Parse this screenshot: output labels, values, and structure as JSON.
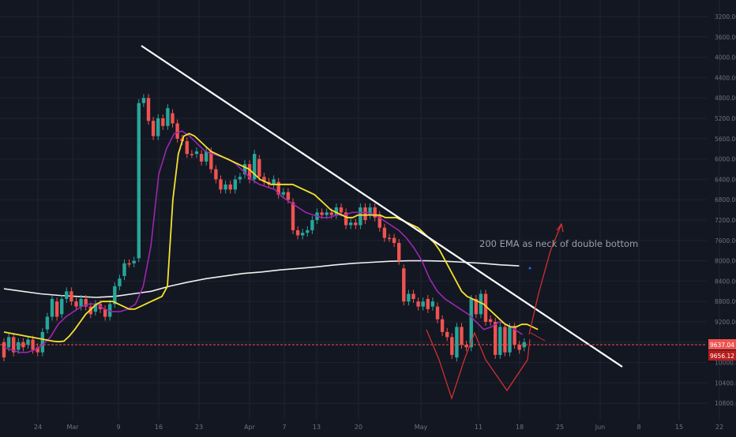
{
  "colors": {
    "background": "#131722",
    "grid": "#1f2430",
    "axis_text": "#6b7280",
    "up_candle": "#26a69a",
    "down_candle": "#ef5350",
    "ema_200": "#f0f0f0",
    "ema_yellow": "#f5e22c",
    "ema_purple": "#9c27b0",
    "trendline": "#ffffff",
    "price_line": "#ef5350",
    "annotation": "#e03030",
    "annotation_text": "#9aa0a8",
    "label_red": "#ef5350",
    "label_dark_red": "#b71c1c"
  },
  "chart_data": {
    "type": "candlestick",
    "title": "",
    "xlabel": "",
    "ylabel": "",
    "inverted_price_scale": true,
    "grid": true,
    "ylim": [
      11100,
      3100
    ],
    "y_ticks": [
      3200,
      3600,
      4000,
      4400,
      4800,
      5200,
      5600,
      6000,
      6400,
      6800,
      7200,
      7600,
      8000,
      8400,
      8800,
      9200,
      9600,
      10000,
      10400,
      10800
    ],
    "x_ticks": [
      "24",
      "Mar",
      "9",
      "16",
      "23",
      "Apr",
      "7",
      "13",
      "20",
      "May",
      "11",
      "18",
      "25",
      "Jun",
      "8",
      "15",
      "22"
    ],
    "price_labels": [
      "9637.04",
      "9656.12"
    ],
    "annotation_text": "200 EMA as neck of double bottom",
    "candles": [
      [
        9600,
        9900
      ],
      [
        9700,
        9500
      ],
      [
        9500,
        9800
      ],
      [
        9750,
        9600
      ],
      [
        9600,
        9700
      ],
      [
        9650,
        9550
      ],
      [
        9550,
        9750
      ],
      [
        9700,
        9800
      ],
      [
        9800,
        9400
      ],
      [
        9350,
        9100
      ],
      [
        9100,
        8750
      ],
      [
        8800,
        9100
      ],
      [
        9050,
        8750
      ],
      [
        8750,
        8600
      ],
      [
        8600,
        8800
      ],
      [
        8800,
        8900
      ],
      [
        8900,
        8750
      ],
      [
        8750,
        8900
      ],
      [
        8900,
        9050
      ],
      [
        9000,
        8850
      ],
      [
        8850,
        8950
      ],
      [
        8950,
        9100
      ],
      [
        9100,
        8850
      ],
      [
        8850,
        8500
      ],
      [
        8500,
        8350
      ],
      [
        8300,
        8050
      ],
      [
        8050,
        8050
      ],
      [
        8050,
        8000
      ],
      [
        7950,
        4900
      ],
      [
        4900,
        4800
      ],
      [
        4800,
        5250
      ],
      [
        5250,
        5550
      ],
      [
        5550,
        5200
      ],
      [
        5200,
        5350
      ],
      [
        5350,
        5000
      ],
      [
        5100,
        5300
      ],
      [
        5300,
        5600
      ],
      [
        5600,
        5650
      ],
      [
        5650,
        5900
      ],
      [
        5900,
        5900
      ],
      [
        5900,
        5850
      ],
      [
        5900,
        6050
      ],
      [
        6050,
        5850
      ],
      [
        5850,
        6200
      ],
      [
        6200,
        6400
      ],
      [
        6400,
        6600
      ],
      [
        6600,
        6500
      ],
      [
        6500,
        6600
      ],
      [
        6600,
        6400
      ],
      [
        6400,
        6350
      ],
      [
        6300,
        6100
      ],
      [
        6100,
        6400
      ],
      [
        6400,
        5900
      ],
      [
        6000,
        6350
      ],
      [
        6350,
        6450
      ],
      [
        6450,
        6500
      ],
      [
        6500,
        6400
      ],
      [
        6450,
        6700
      ],
      [
        6700,
        6650
      ],
      [
        6650,
        6800
      ],
      [
        6850,
        7400
      ],
      [
        7400,
        7500
      ],
      [
        7500,
        7450
      ],
      [
        7450,
        7400
      ],
      [
        7400,
        7200
      ],
      [
        7200,
        7050
      ],
      [
        7050,
        7100
      ],
      [
        7100,
        7050
      ],
      [
        7050,
        7100
      ],
      [
        7100,
        6950
      ],
      [
        6950,
        7050
      ],
      [
        7050,
        7300
      ],
      [
        7300,
        7250
      ],
      [
        7250,
        7300
      ],
      [
        7300,
        6950
      ],
      [
        6950,
        7200
      ],
      [
        7100,
        6950
      ],
      [
        6950,
        7150
      ],
      [
        7100,
        7350
      ],
      [
        7350,
        7550
      ],
      [
        7550,
        7550
      ],
      [
        7550,
        7650
      ],
      [
        7650,
        8000
      ],
      [
        8150,
        8800
      ],
      [
        8800,
        8650
      ],
      [
        8650,
        8750
      ],
      [
        8800,
        8900
      ],
      [
        8900,
        8800
      ],
      [
        8750,
        8950
      ],
      [
        8900,
        8800
      ],
      [
        8900,
        9150
      ],
      [
        9150,
        9400
      ],
      [
        9400,
        9500
      ],
      [
        9500,
        9850
      ],
      [
        9900,
        9300
      ],
      [
        9300,
        9650
      ],
      [
        9650,
        9700
      ],
      [
        9700,
        8750
      ],
      [
        8750,
        9050
      ],
      [
        9050,
        8650
      ],
      [
        8650,
        9200
      ],
      [
        9150,
        9200
      ],
      [
        9200,
        9850
      ],
      [
        9850,
        9300
      ],
      [
        9300,
        9800
      ],
      [
        9800,
        9300
      ],
      [
        9300,
        9650
      ],
      [
        9650,
        9750
      ],
      [
        9700,
        9600
      ]
    ],
    "series": [
      {
        "kind": "line",
        "values": [
          9400,
          9420,
          9440,
          9460,
          9480,
          9500,
          9520,
          9540,
          9560,
          9580,
          9590,
          9580,
          9480,
          9350,
          9200,
          9050,
          8950,
          8850,
          8800,
          8800,
          8800,
          8850,
          8900,
          8950,
          8950,
          8900,
          8850,
          8800,
          8750,
          8700,
          8500,
          6800,
          5900,
          5550,
          5500,
          5550,
          5650,
          5750,
          5850,
          5900,
          5950,
          6000,
          6050,
          6100,
          6150,
          6200,
          6300,
          6400,
          6450,
          6500,
          6500,
          6500,
          6500,
          6500,
          6550,
          6600,
          6650,
          6700,
          6800,
          6900,
          7000,
          7050,
          7100,
          7150,
          7150,
          7100,
          7100,
          7100,
          7100,
          7100,
          7150,
          7150,
          7150,
          7200,
          7250,
          7300,
          7350,
          7450,
          7550,
          7650,
          7800,
          8000,
          8200,
          8400,
          8600,
          8700,
          8750,
          8800,
          8850,
          8950,
          9050,
          9150,
          9250,
          9300,
          9300,
          9250,
          9250,
          9300,
          9350
        ]
      },
      {
        "kind": "line",
        "values": [
          9800,
          9750,
          9700,
          9600,
          9550,
          9500,
          9450,
          9450,
          9400,
          9350,
          9250,
          9100,
          8950,
          8850,
          8850,
          8900,
          8950,
          8900,
          8850,
          8700,
          8500,
          8100,
          5900,
          5450,
          5350,
          5500,
          5650,
          5750,
          5850,
          5900,
          5900,
          5950,
          6000,
          6150,
          6250,
          6350,
          6450,
          6450,
          6500,
          6500,
          6550,
          6600,
          6700,
          6800,
          6900,
          7000,
          7050,
          7100,
          7100,
          7100,
          7100,
          7050,
          7050,
          7100,
          7100,
          7100,
          7150,
          7200,
          7300,
          7400,
          7550,
          7700,
          7950,
          8300,
          8600,
          8800,
          8850,
          8900,
          8950,
          9150,
          9250,
          9300,
          9250,
          9200,
          9300,
          9400
        ]
      },
      {
        "kind": "line",
        "values": [
          9700,
          9750,
          9800,
          9800,
          9750,
          9650,
          9500,
          9250,
          9100,
          9000,
          8900,
          8850,
          8850,
          8950,
          9000,
          9000,
          8950,
          8850,
          8500,
          7700,
          6300,
          5800,
          5500,
          5450,
          5550,
          5700,
          5850,
          5900,
          5950,
          6000,
          6100,
          6250,
          6400,
          6500,
          6550,
          6600,
          6750,
          6850,
          6950,
          7050,
          7100,
          7150,
          7150,
          7100,
          7100,
          7050,
          7050,
          7050,
          7100,
          7200,
          7300,
          7400,
          7550,
          7750,
          8000,
          8350,
          8600,
          8750,
          8850,
          8950,
          9050,
          9200,
          9350,
          9300,
          9200,
          9250,
          9350,
          9450
        ]
      },
      {
        "kind": "line",
        "values": [
          8550,
          8600,
          8650,
          8680,
          8700,
          8720,
          8700,
          8650,
          8600,
          8500,
          8420,
          8350,
          8300,
          8250,
          8220,
          8180,
          8150,
          8120,
          8080,
          8050,
          8030,
          8010,
          8000,
          8000,
          8010,
          8030,
          8050,
          8080,
          8100
        ]
      }
    ]
  }
}
